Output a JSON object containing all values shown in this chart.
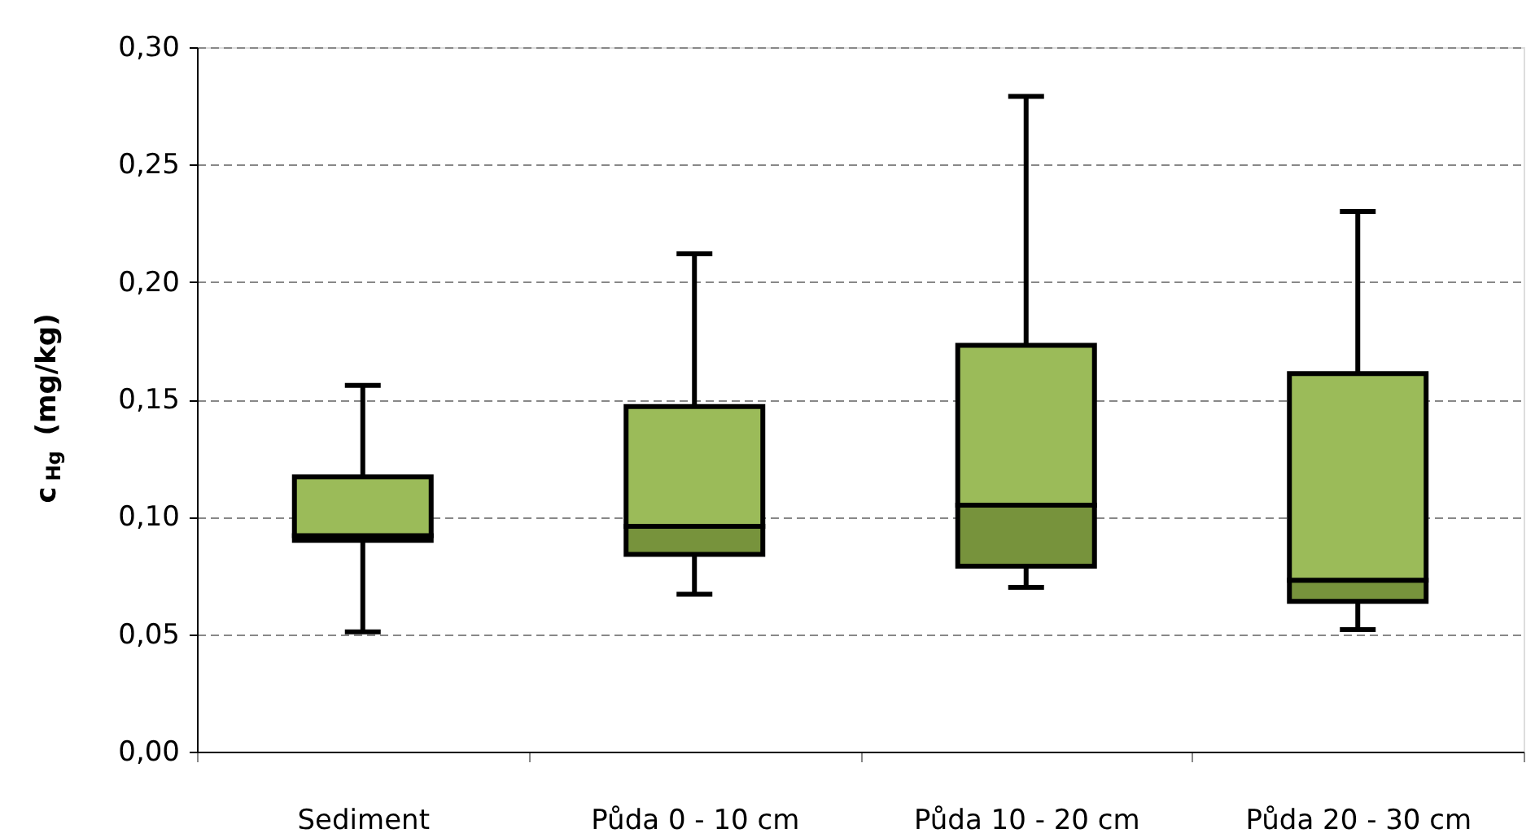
{
  "chart_data": {
    "type": "box",
    "ylabel": "c$_{Hg}$ (mg/kg)",
    "categories": [
      "Sediment",
      "Půda 0 - 10 cm",
      "Půda 10 - 20 cm",
      "Půda 20 - 30 cm"
    ],
    "series": [
      {
        "color": "#9bbb59",
        "colors": [
          "#77933c",
          "#77933c",
          "#77933c",
          "#77933c"
        ],
        "boxes": [
          {
            "low": 0.051,
            "q1": 0.09,
            "median": 0.092,
            "q3": 0.117,
            "high": 0.156
          },
          {
            "low": 0.067,
            "q1": 0.084,
            "median": 0.096,
            "q3": 0.147,
            "high": 0.212
          },
          {
            "low": 0.07,
            "q1": 0.079,
            "median": 0.105,
            "q3": 0.173,
            "high": 0.279
          },
          {
            "low": 0.052,
            "q1": 0.064,
            "median": 0.073,
            "q3": 0.161,
            "high": 0.23
          }
        ]
      }
    ],
    "ylim": [
      0,
      0.3
    ],
    "yticks": [
      {
        "value": 0,
        "label": "0,00"
      },
      {
        "value": 0.05,
        "label": "0,05"
      },
      {
        "value": 0.1,
        "label": "0,10"
      },
      {
        "value": 0.15,
        "label": "0,15"
      },
      {
        "value": 0.2,
        "label": "0,20"
      },
      {
        "value": 0.25,
        "label": "0,25"
      },
      {
        "value": 0.3,
        "label": "0,30"
      }
    ],
    "grid": "y"
  }
}
